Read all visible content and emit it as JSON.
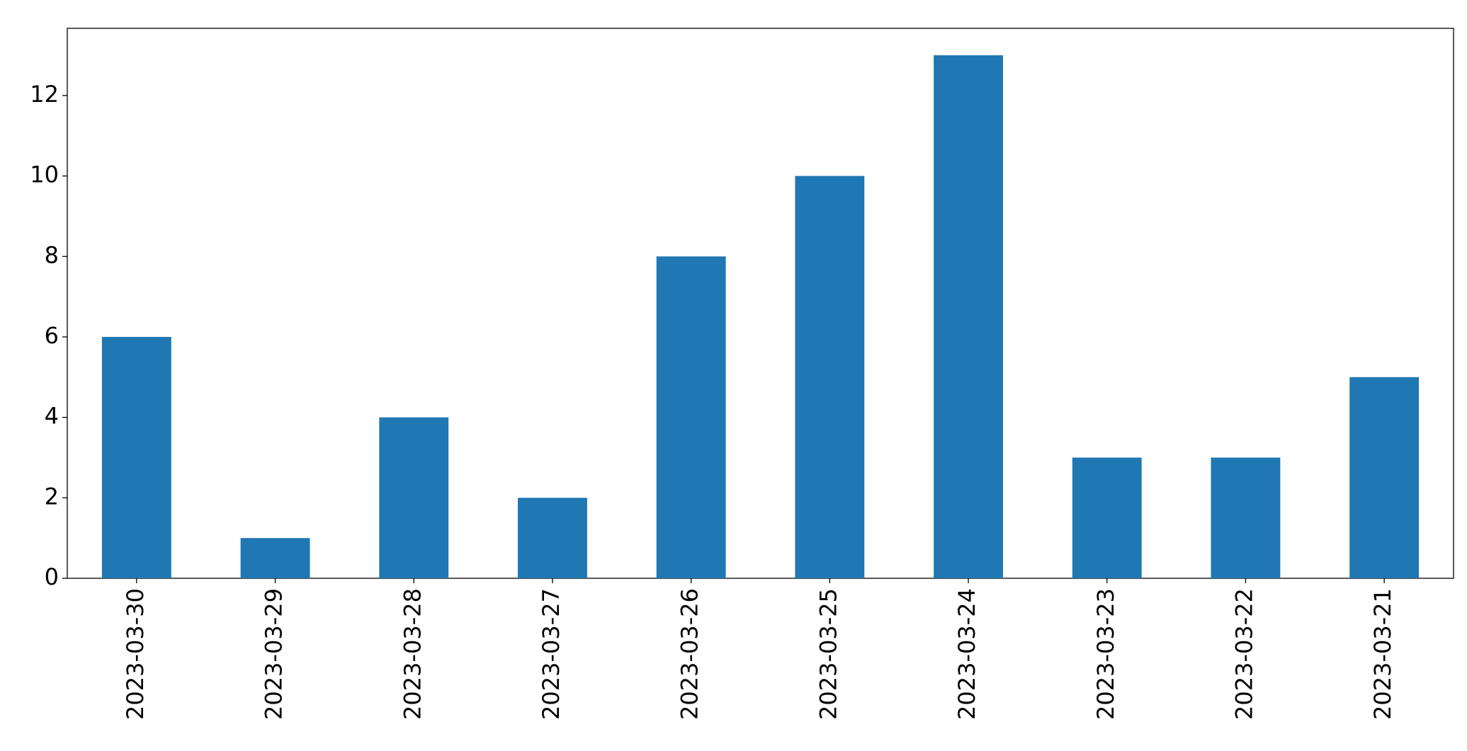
{
  "chart_data": {
    "type": "bar",
    "categories": [
      "2023-03-30",
      "2023-03-29",
      "2023-03-28",
      "2023-03-27",
      "2023-03-26",
      "2023-03-25",
      "2023-03-24",
      "2023-03-23",
      "2023-03-22",
      "2023-03-21"
    ],
    "values": [
      6,
      1,
      4,
      2,
      8,
      10,
      13,
      3,
      3,
      5
    ],
    "color": "#1f77b4",
    "ylim": [
      0,
      13.67
    ],
    "yticks": [
      0,
      2,
      4,
      6,
      8,
      10,
      12
    ],
    "grid": false
  }
}
